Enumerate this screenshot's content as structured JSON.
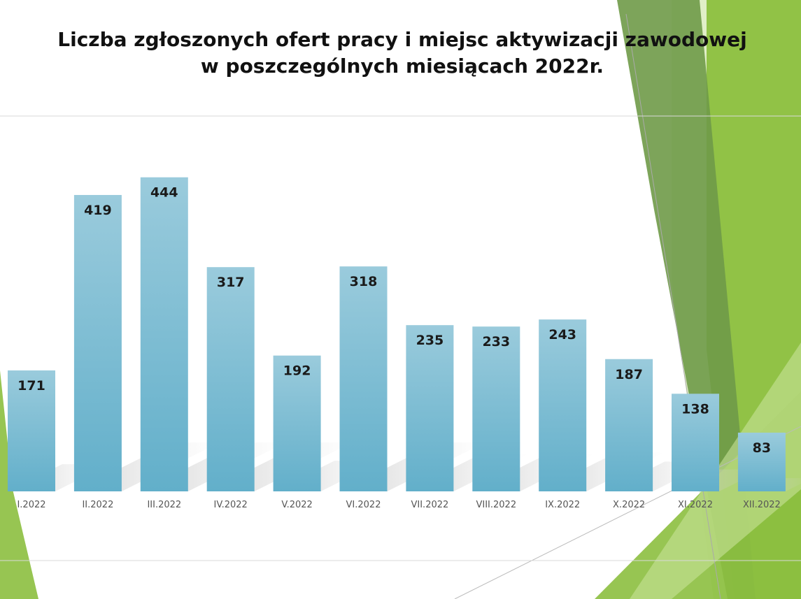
{
  "slide": {
    "title_line1": "Liczba zgłoszonych ofert pracy i miejsc aktywizacji zawodowej",
    "title_line2": "w poszczególnych miesiącach 2022r.",
    "accent_colors": {
      "bar_top": "#9acbdc",
      "bar_bottom": "#62afca",
      "green_dark": "#6f9a48",
      "green_mid": "#8cbf3f",
      "green_light": "#c8e29a"
    }
  },
  "chart_data": {
    "type": "bar",
    "title": "Liczba zgłoszonych ofert pracy i miejsc aktywizacji zawodowej w poszczególnych miesiącach 2022r.",
    "categories": [
      "I.2022",
      "II.2022",
      "III.2022",
      "IV.2022",
      "V.2022",
      "VI.2022",
      "VII.2022",
      "VIII.2022",
      "IX.2022",
      "X.2022",
      "XI.2022",
      "XII.2022"
    ],
    "values": [
      171,
      419,
      444,
      317,
      192,
      318,
      235,
      233,
      243,
      187,
      138,
      83
    ],
    "xlabel": "",
    "ylabel": "",
    "ylim": [
      0,
      530
    ],
    "grid": true,
    "data_labels": true,
    "legend": "none"
  }
}
